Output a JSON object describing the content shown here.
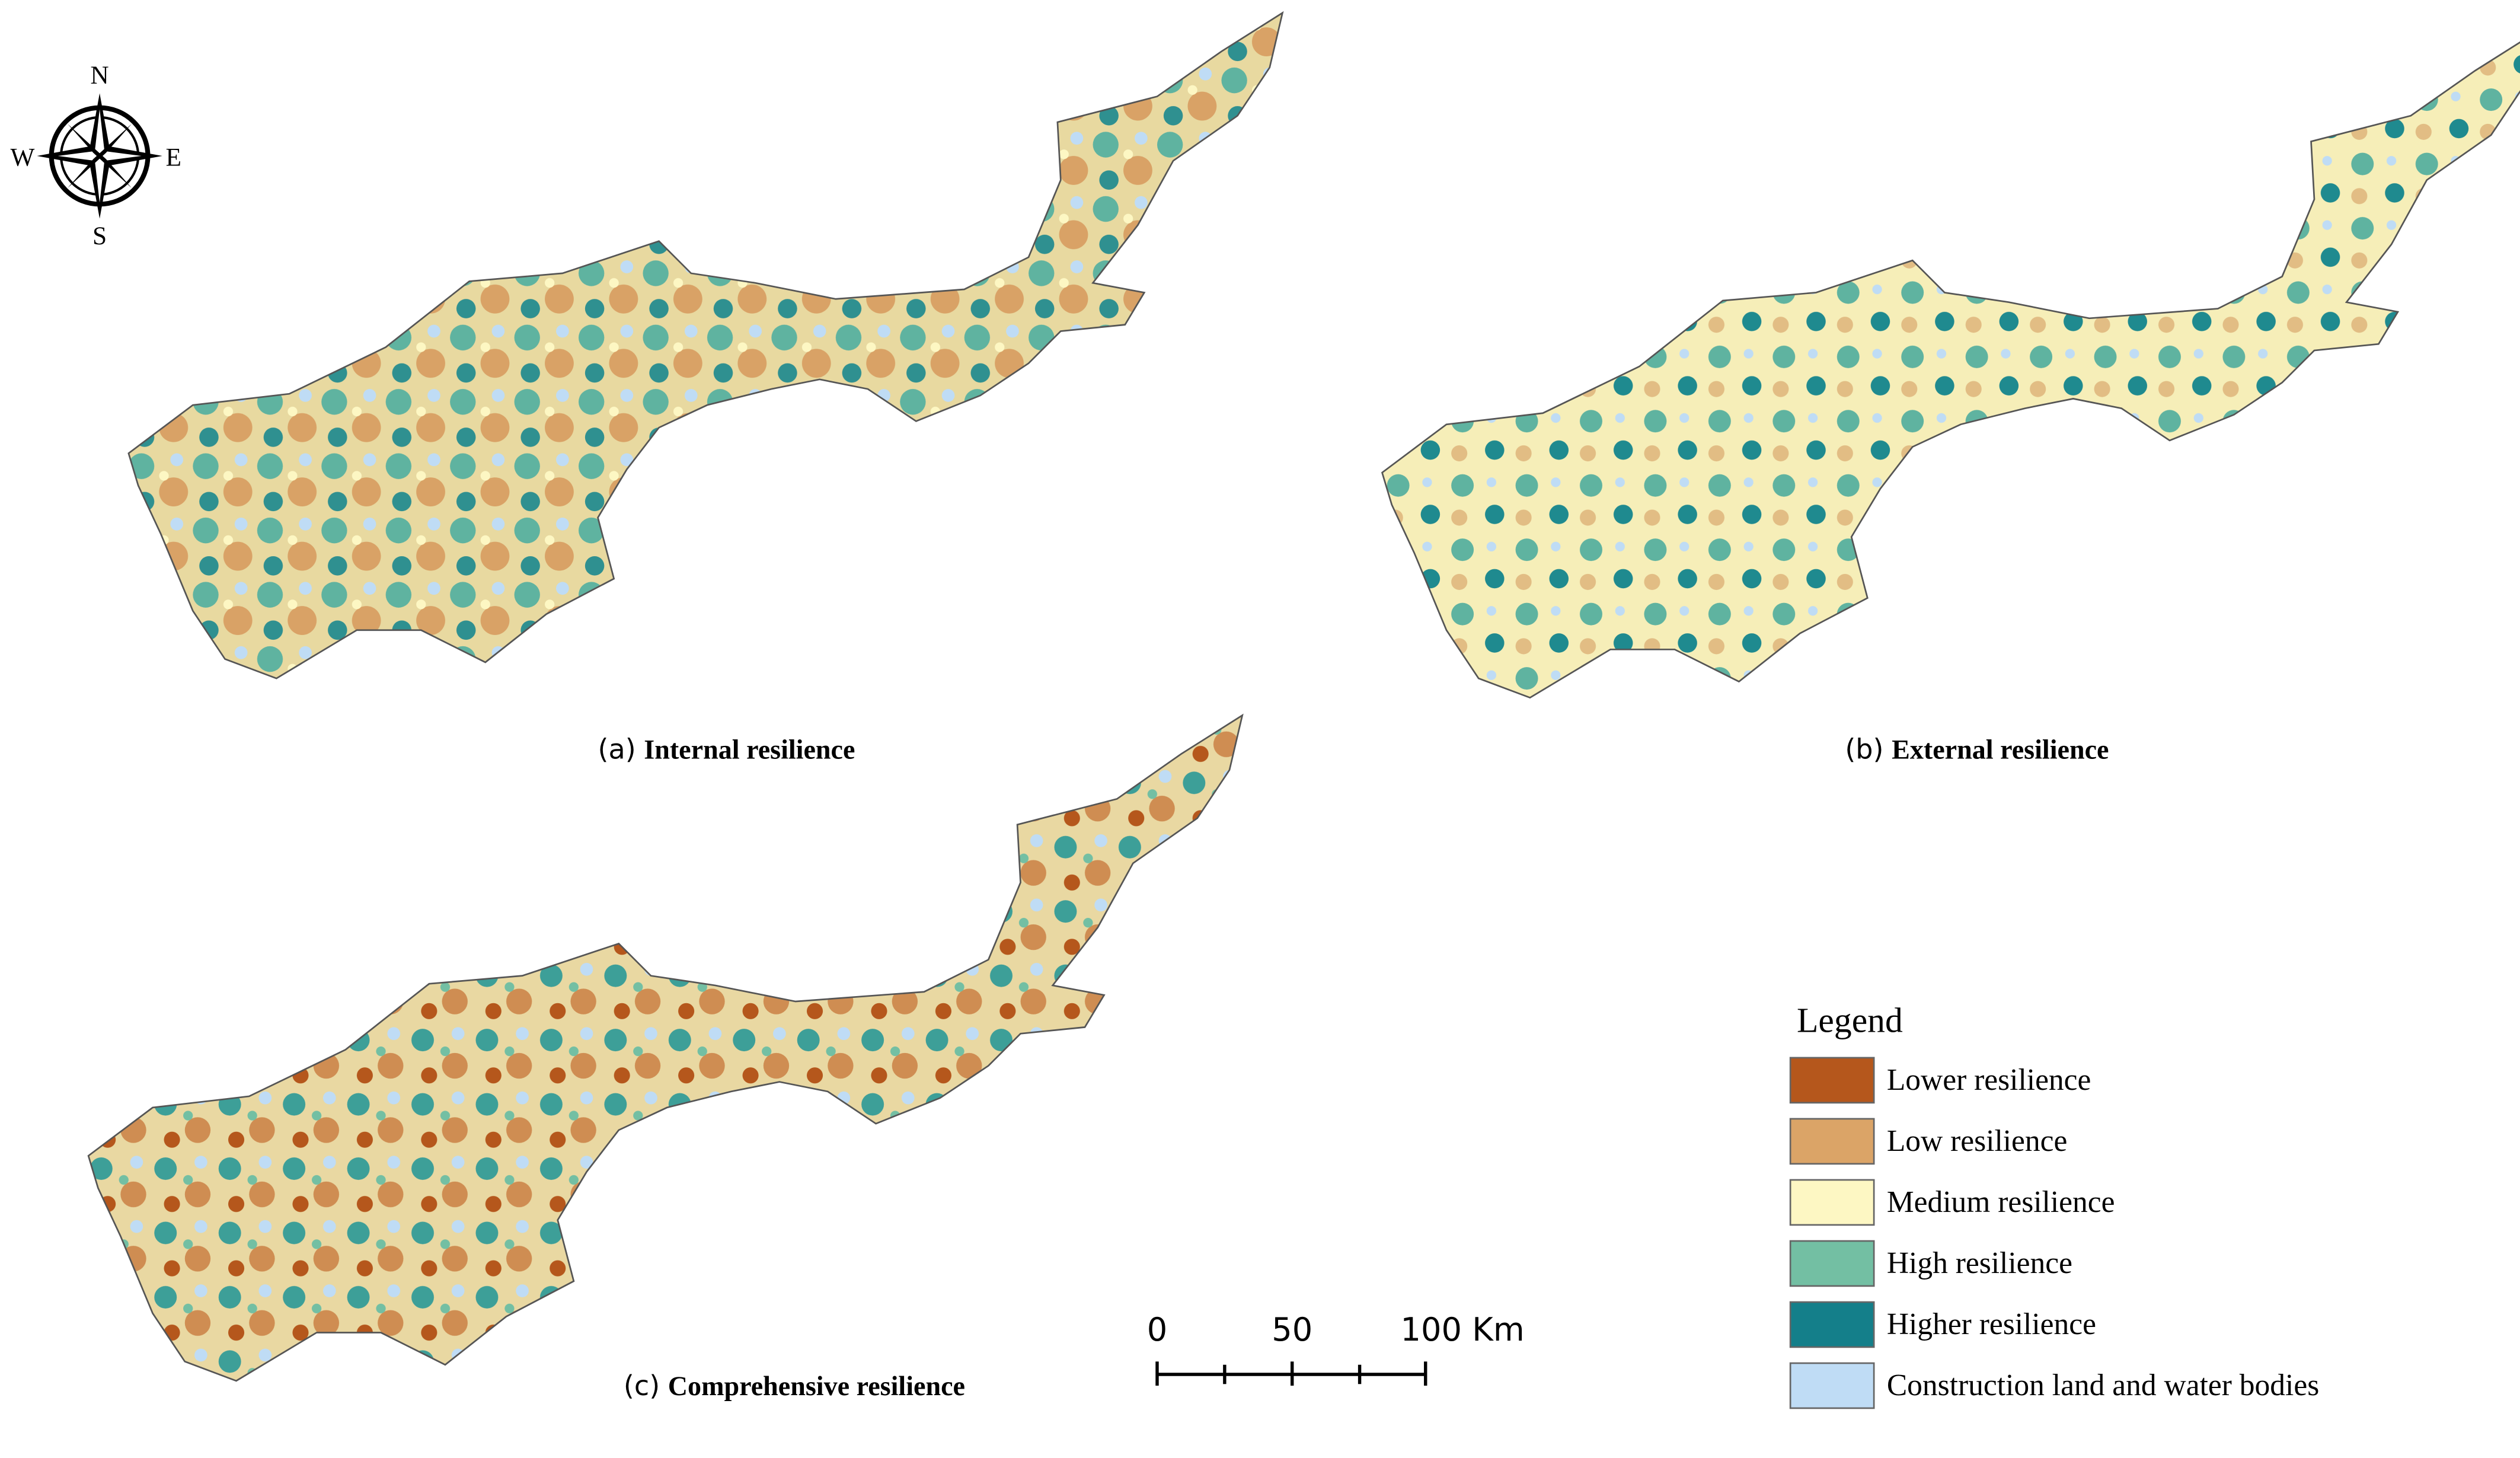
{
  "compass": {
    "north": "N",
    "south": "S",
    "west": "W",
    "east": "E"
  },
  "panels": [
    {
      "label": "(a)",
      "title": "Internal resilience"
    },
    {
      "label": "(b)",
      "title": "External resilience"
    },
    {
      "label": "(c)",
      "title": "Comprehensive resilience"
    }
  ],
  "scale_bar": {
    "labels": [
      "0",
      "50",
      "100 Km"
    ]
  },
  "legend": {
    "title": "Legend",
    "items": [
      {
        "label": "Lower resilience",
        "color": "#b5571c"
      },
      {
        "label": "Low resilience",
        "color": "#dba467"
      },
      {
        "label": "Medium resilience",
        "color": "#fdf7c3"
      },
      {
        "label": "High resilience",
        "color": "#73bfa3"
      },
      {
        "label": "Higher resilience",
        "color": "#147f8a"
      },
      {
        "label": "Construction land and water bodies",
        "color": "#bfdcf5"
      }
    ]
  }
}
